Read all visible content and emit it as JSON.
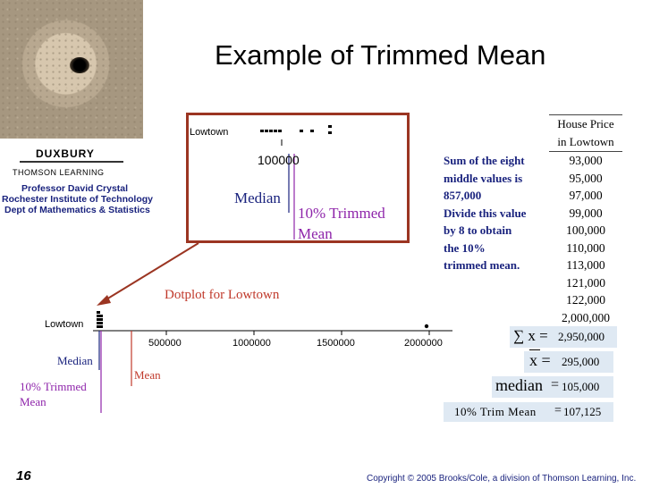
{
  "title": "Example of Trimmed Mean",
  "logo": {
    "brand": "DUXBURY",
    "sub": "THOMSON LEARNING",
    "author": "Professor David Crystal",
    "institute": "Rochester Institute of Technology",
    "dept": "Dept of Mathematics & Statistics"
  },
  "inset": {
    "row_label": "Lowtown",
    "tick_label": "100000",
    "median_label": "Median",
    "trimmed_line1": "10% Trimmed",
    "trimmed_line2": "Mean"
  },
  "main_plot": {
    "caption": "Dotplot for Lowtown",
    "row_label": "Lowtown",
    "ticks": [
      "500000",
      "1000000",
      "1500000",
      "2000000"
    ],
    "median_label": "Median",
    "mean_label": "Mean",
    "trimmed_line1": "10% Trimmed",
    "trimmed_line2": "Mean"
  },
  "table": {
    "header_line1": "House Price",
    "header_line2": "in Lowtown",
    "values": [
      "93,000",
      "95,000",
      "97,000",
      "99,000",
      "100,000",
      "110,000",
      "113,000",
      "121,000",
      "122,000",
      "2,000,000"
    ]
  },
  "explanation": {
    "lines": [
      "Sum of the eight",
      "middle values is",
      "857,000",
      "Divide this value",
      "by 8 to obtain",
      "the 10%",
      "trimmed mean."
    ]
  },
  "formulas": {
    "sum_symbol": "∑ x =",
    "sum_value": "2,950,000",
    "mean_symbol": "x =",
    "mean_value": "295,000",
    "median_label": "median",
    "median_eq": "=",
    "median_value": "105,000",
    "trim_label": "10% Trim Mean",
    "trim_eq": "=",
    "trim_value": "107,125"
  },
  "footer": {
    "slide_number": "16",
    "copyright": "Copyright © 2005 Brooks/Cole, a division of Thomson Learning, Inc."
  },
  "colors": {
    "navy": "#1a237e",
    "inset_border": "#9b3522",
    "mean_red": "#c0392b",
    "trim_purple": "#8e24aa",
    "median_blue": "#1a237e"
  }
}
